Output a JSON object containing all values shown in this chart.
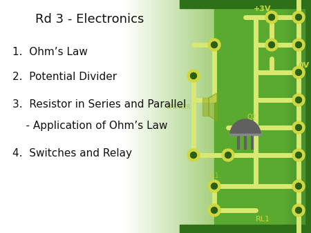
{
  "title": "Rd 3 - Electronics",
  "items": [
    "1.  Ohm’s Law",
    "2.  Potential Divider",
    "3.  Resistor in Series and Parallel",
    "    - Application of Ohm’s Law",
    "4.  Switches and Relay"
  ],
  "title_fontsize": 13,
  "item_fontsize": 11,
  "text_color": "#111111",
  "trace_color": "#d8e870",
  "pad_outer_color": "#d0d840",
  "pad_inner_color": "#2a6010",
  "transistor_color": "#606060",
  "label_color": "#c8d840",
  "speaker_color": "#b8c830",
  "green_mid": "#7aba50",
  "green_dark": "#3a8a28",
  "green_edge": "#2a7018"
}
